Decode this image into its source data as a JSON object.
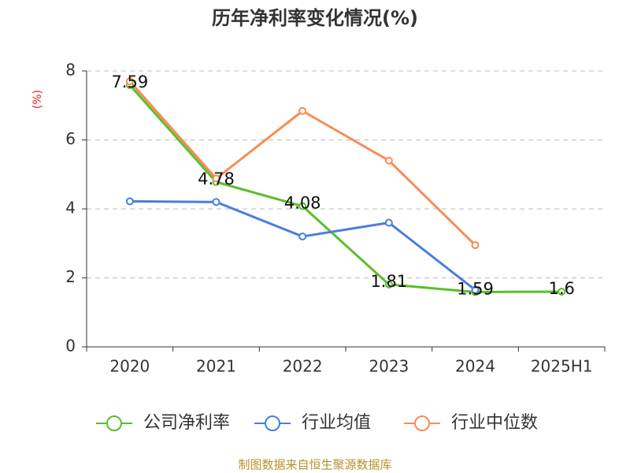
{
  "chart_data": {
    "type": "line",
    "title": "历年净利率变化情况(%)",
    "y_label": "(%)",
    "categories": [
      "2020",
      "2021",
      "2022",
      "2023",
      "2024",
      "2025H1"
    ],
    "series": [
      {
        "name": "公司净利率",
        "color": "#5cbd2b",
        "values": [
          7.59,
          4.78,
          4.08,
          1.81,
          1.59,
          1.6
        ],
        "show_labels": true
      },
      {
        "name": "行业均值",
        "color": "#4a7edb",
        "values": [
          4.22,
          4.2,
          3.2,
          3.6,
          1.65,
          null
        ]
      },
      {
        "name": "行业中位数",
        "color": "#f78c55",
        "values": [
          7.7,
          4.88,
          6.84,
          5.4,
          2.95,
          null
        ]
      }
    ],
    "ylim": [
      0,
      8
    ],
    "yticks": [
      0,
      2,
      4,
      6,
      8
    ],
    "grid": true,
    "legend": "bottom",
    "source": "制图数据来自恒生聚源数据库"
  }
}
